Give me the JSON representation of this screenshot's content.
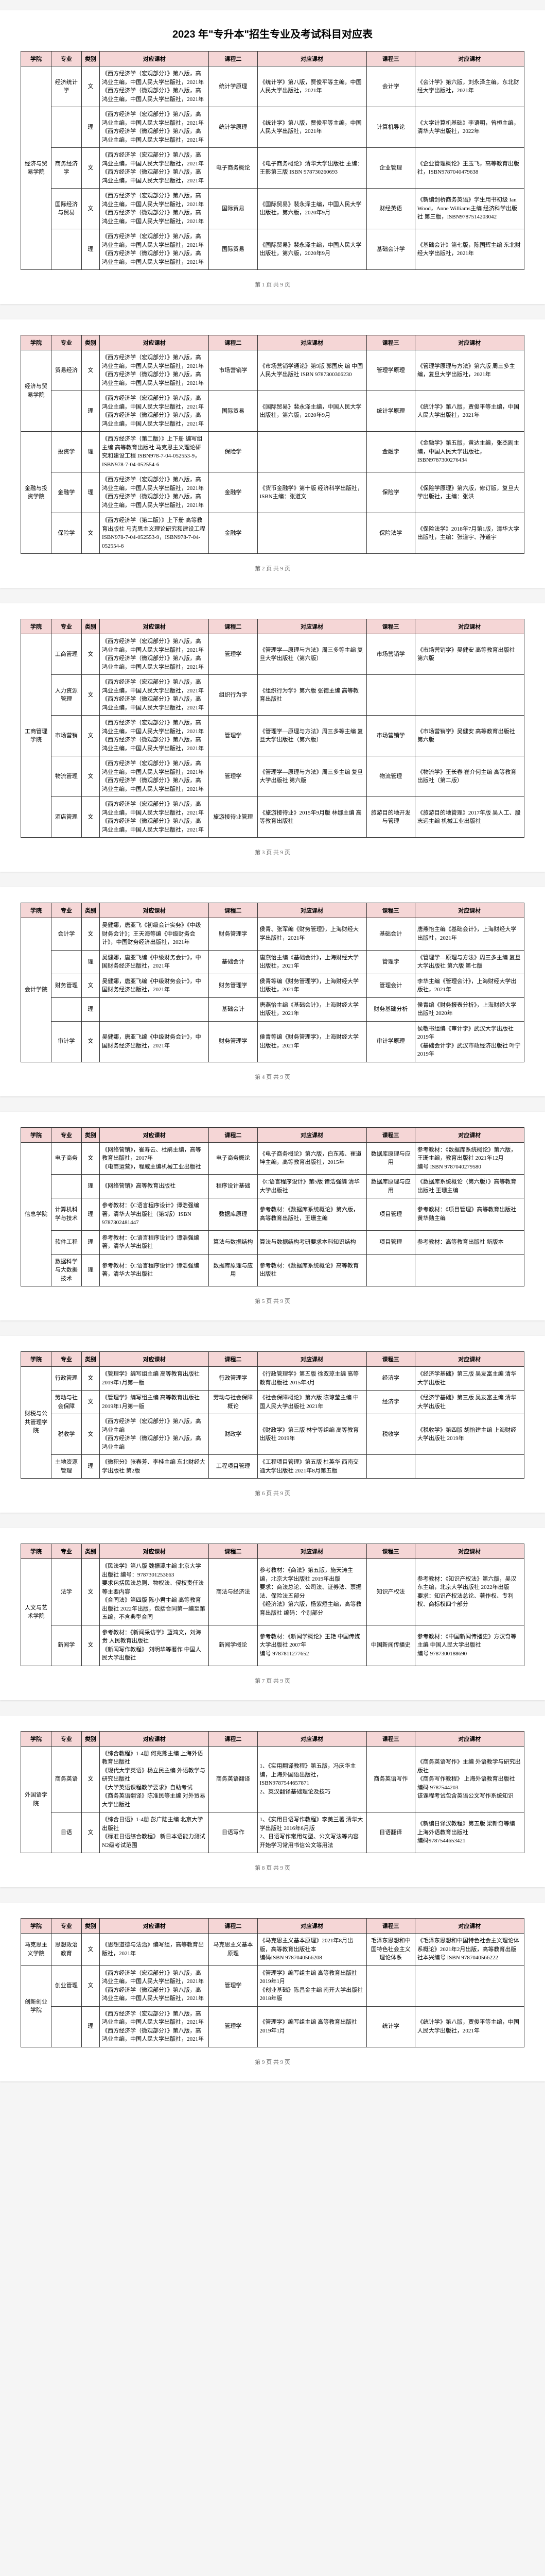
{
  "title": "2023 年\"专升本\"招生专业及考试科目对应表",
  "columns": [
    "学院",
    "专业",
    "类别",
    "对应课材",
    "课程二",
    "对应课材",
    "课程三",
    "对应课材"
  ],
  "page_prefix": "第",
  "page_suffix": "页 共 9 页",
  "colors": {
    "header_bg": "#f5d6d6",
    "border": "#333333",
    "page_bg": "#f5f5f5",
    "paper_bg": "#ffffff"
  },
  "pages": [
    {
      "num": 1,
      "rows": [
        {
          "school": "经济与贸易学院",
          "school_rs": 5,
          "major": "经济统计学",
          "class": "文",
          "tb1": "《西方经济学（宏观部分）》第八版，高鸿业主编，中国人民大学出版社，2021年\n《西方经济学（微观部分）》第八版，高鸿业主编，中国人民大学出版社，2021年",
          "c2": "统计学原理",
          "tb2": "《统计学》第八版，贾俊平等主编，中国人民大学出版社，2021年",
          "c3": "会计学",
          "tb3": "《会计学》第六版，刘永泽主编，东北财经大学出版社，2021年"
        },
        {
          "major": "",
          "class": "理",
          "tb1": "《西方经济学（宏观部分）》第八版，高鸿业主编，中国人民大学出版社，2021年\n《西方经济学（微观部分）》第八版，高鸿业主编，中国人民大学出版社，2021年",
          "c2": "统计学原理",
          "tb2": "《统计学》第八版，贾俊平等主编，中国人民大学出版社，2021年",
          "c3": "计算机导论",
          "tb3": "《大学计算机基础》李语明，曾桓主编，清华大学出版社，2022年"
        },
        {
          "major": "商务经济学",
          "class": "文",
          "tb1": "《西方经济学（宏观部分）》第八版，高鸿业主编，中国人民大学出版社，2021年\n《西方经济学（微观部分）》第八版，高鸿业主编，中国人民大学出版社，2021年",
          "c2": "电子商务概论",
          "tb2": "《电子商务概论》清华大学出版社 主编：王影第三版 ISBN 978730260693",
          "c3": "企业管理",
          "tb3": "《企业管理概论》王玉飞，高等教育出版社，ISBN9787040479638"
        },
        {
          "major": "国际经济与贸易",
          "class": "文",
          "tb1": "《西方经济学（宏观部分）》第八版，高鸿业主编，中国人民大学出版社，2021年\n《西方经济学（微观部分）》第八版，高鸿业主编，中国人民大学出版社，2021年",
          "c2": "国际贸易",
          "tb2": "《国际贸易》裴永泽主编，中国人民大学出版社，第六版，2020年9月",
          "c3": "财经英语",
          "tb3": "《新编剑桥商务英语》学生用书初级 Ian Wood，Anne Williams主编 经济科学出版社 第三版，ISBN9787514203042"
        },
        {
          "major": "",
          "class": "理",
          "tb1": "《西方经济学（宏观部分）》第八版，高鸿业主编，中国人民大学出版社，2021年\n《西方经济学（微观部分）》第八版，高鸿业主编，中国人民大学出版社，2021年",
          "c2": "国际贸易",
          "tb2": "《国际贸易》裴永泽主编，中国人民大学出版社，第六版，2020年9月",
          "c3": "基础会计学",
          "tb3": "《基础会计》第七版，陈国辉主编 东北财经大学出版社，2021年"
        }
      ]
    },
    {
      "num": 2,
      "rows": [
        {
          "school": "经济与贸易学院",
          "school_rs": 2,
          "major": "贸易经济",
          "class": "文",
          "tb1": "《西方经济学（宏观部分）》第八版，高鸿业主编，中国人民大学出版社，2021年\n《西方经济学（微观部分）》第八版，高鸿业主编，中国人民大学出版社，2021年",
          "c2": "市场营销学",
          "tb2": "《市场营销学通论》第9版 郭国庆 编 中国人民大学出版社 ISBN 9787300306230",
          "c3": "管理学原理",
          "tb3": "《管理学原理与方法》第六版 周三多主编，复旦大学出版社，2021年"
        },
        {
          "major": "",
          "class": "理",
          "tb1": "《西方经济学（宏观部分）》第八版，高鸿业主编，中国人民大学出版社，2021年\n《西方经济学（微观部分）》第八版，高鸿业主编，中国人民大学出版社，2021年",
          "c2": "国际贸易",
          "tb2": "《国际贸易》裴永泽主编，中国人民大学出版社，第六版，2020年9月",
          "c3": "统计学原理",
          "tb3": "《统计学》第八版，贾俊平等主编，中国人民大学出版社，2021年"
        },
        {
          "school": "金融与投资学院",
          "school_rs": 3,
          "major": "投资学",
          "class": "理",
          "tb1": "《西方经济学（第二版）》上下册 编写组主编 高等教育出版社 马克思主义理论研究和建设工程 ISBN978-7-04-052553-9，ISBN978-7-04-052554-6",
          "c2": "保险学",
          "tb2": "",
          "c3": "金融学",
          "tb3": "《金融学》第五版，黄达主编，张杰副主编，中国人民大学出版社，ISBN9787300276434"
        },
        {
          "major": "金融学",
          "class": "理",
          "tb1": "《西方经济学（宏观部分）》第八版，高鸿业主编，中国人民大学出版社，2021年\n《西方经济学（微观部分）》第八版，高鸿业主编，中国人民大学出版社，2021年",
          "c2": "金融学",
          "tb2": "《货币金融学》第十版 经济科学出版社，ISBN主编：张道文",
          "c3": "保险学",
          "tb3": "《保险学原理》第六版，修订版，复旦大学出版社，主编：张洪"
        },
        {
          "major": "保险学",
          "class": "文",
          "tb1": "《西方经济学（第二版）》上下册 高等教育出版社 马克思主义理论研究和建设工程 ISBN978-7-04-052553-9，ISBN978-7-04-052554-6",
          "c2": "金融学",
          "tb2": "",
          "c3": "保险法学",
          "tb3": "《保险法学》2018年7月第1版，清华大学出版社，主编：张道宇、孙道宇"
        }
      ]
    },
    {
      "num": 3,
      "rows": [
        {
          "school": "工商管理学院",
          "school_rs": 5,
          "major": "工商管理",
          "class": "文",
          "tb1": "《西方经济学（宏观部分）》第八版，高鸿业主编，中国人民大学出版社，2021年\n《西方经济学（微观部分）》第八版，高鸿业主编，中国人民大学出版社，2021年",
          "c2": "管理学",
          "tb2": "《管理学—原理与方法》周三多等主编 复旦大学出版社（第六版）",
          "c3": "市场营销学",
          "tb3": "《市场营销学》吴健安 高等教育出版社 第六版"
        },
        {
          "major": "人力资源管理",
          "class": "文",
          "tb1": "《西方经济学（宏观部分）》第八版，高鸿业主编，中国人民大学出版社，2021年\n《西方经济学（微观部分）》第八版，高鸿业主编，中国人民大学出版社，2021年",
          "c2": "组织行为学",
          "tb2": "《组织行为学》第六版 张德主编 高等教育出版社",
          "c3": "",
          "tb3": ""
        },
        {
          "major": "市场营销",
          "class": "文",
          "tb1": "《西方经济学（宏观部分）》第八版，高鸿业主编，中国人民大学出版社，2021年\n《西方经济学（微观部分）》第八版，高鸿业主编，中国人民大学出版社，2021年",
          "c2": "管理学",
          "tb2": "《管理学—原理与方法》周三多等主编 复旦大学出版社（第六版）",
          "c3": "市场营销学",
          "tb3": "《市场营销学》吴健安 高等教育出版社 第六版"
        },
        {
          "major": "物流管理",
          "class": "文",
          "tb1": "《西方经济学（宏观部分）》第八版，高鸿业主编，中国人民大学出版社，2021年\n《西方经济学（微观部分）》第八版，高鸿业主编，中国人民大学出版社，2021年",
          "c2": "管理学",
          "tb2": "《管理学—原理与方法》周三多主编 复旦大学出版社 第六版",
          "c3": "物流管理",
          "tb3": "《物流学》王长春 崔介何主编 高等教育出版社（第二版）"
        },
        {
          "major": "酒店管理",
          "class": "文",
          "tb1": "《西方经济学（宏观部分）》第八版，高鸿业主编，中国人民大学出版社，2021年\n《西方经济学（微观部分）》第八版，高鸿业主编，中国人民大学出版社，2021年",
          "c2": "旅游接待业管理",
          "tb2": "《旅游接待业》2015年9月版 林娜主编 高等教育出版社",
          "c3": "旅游目的地开发与管理",
          "tb3": "《旅游目的地管理》2017年版 吴人工、殷志远主编 机械工业出版社"
        }
      ]
    },
    {
      "num": 4,
      "rows": [
        {
          "school": "会计学院",
          "school_rs": 5,
          "major": "会计学",
          "class": "文",
          "tb1": "吴健娜，唐亚飞《初级会计实务》《中级财务会计》；王天海等编《中级财务会计》，中国财务经济出版社，2021年",
          "c2": "财务管理学",
          "tb2": "侯青、张军编《财务管理》，上海财经大学出版社，2021年",
          "c3": "基础会计",
          "tb3": "唐燕怡主编《基础会计》，上海财经大学出版社，2021年"
        },
        {
          "major": "",
          "class": "理",
          "tb1": "吴健娜，唐亚飞编《中级财务会计》，中国财务经济出版社，2021年",
          "c2": "基础会计",
          "tb2": "唐燕怡主编《基础会计》，上海财经大学出版社，2021年",
          "c3": "管理学",
          "tb3": "《管理学—原理与方法》周三多主编 复旦大学出版社 第六版 第七版"
        },
        {
          "major": "财务管理",
          "class": "文",
          "tb1": "吴健娜，唐亚飞编《中级财务会计》，中国财务经济出版社，2021年",
          "c2": "财务管理学",
          "tb2": "侯青等编《财务管理学》，上海财经大学出版社，2021年",
          "c3": "管理会计",
          "tb3": "李华主编《管理会计》，上海财经大学出版社，2021年"
        },
        {
          "major": "",
          "class": "理",
          "tb1": "",
          "c2": "基础会计",
          "tb2": "唐燕怡主编《基础会计》，上海财经大学出版社，2021年",
          "c3": "财务基础分析",
          "tb3": "侯青编《财务报表分析》，上海财经大学出版社 2020年"
        },
        {
          "major": "审计学",
          "class": "文",
          "tb1": "吴健娜，唐亚飞编《中级财务会计》，中国财务经济出版社，2021年",
          "c2": "财务管理学",
          "tb2": "侯青等编《财务管理学》，上海财经大学出版社，2021年",
          "c3": "审计学原理",
          "tb3": "侯敬书组编《审计学》武汉大学出版社2019年\n《基础会计学》武汉市政经济出版社 叶宁 2019年"
        }
      ]
    },
    {
      "num": 5,
      "rows": [
        {
          "school": "信息学院",
          "school_rs": 5,
          "major": "电子商务",
          "class": "文",
          "tb1": "《网络营销》，崔寿云、杜鹃主编，高等教育出版社，2017年\n《电商运营》，程威主编机械工业出版社",
          "c2": "电子商务概论",
          "tb2": "《电子商务概论》第六版，白东燕、崔道坤主编，高等教育出版社，2015年",
          "c3": "数据库原理与应用",
          "tb3": "参考教材：《数据库系统概论》第六版，王珊主编，教育出版社 2021年12月\n编号 ISBN 9787040279580"
        },
        {
          "major": "",
          "class": "理",
          "tb1": "《网络营销》高等教育出版社",
          "c2": "程序设计基础",
          "tb2": "《C语言程序设计》第5版 谭浩强编 清华大学出版社",
          "c3": "数据库原理与应用",
          "tb3": "《数据库系统概论（第六版）》高等教育出版社 王珊主编"
        },
        {
          "major": "计算机科学与技术",
          "class": "理",
          "tb1": "参考教材：《C语言程序设计》谭浩强编著，清华大学出版社（第5版）ISBN 9787302481447",
          "c2": "数据库原理",
          "tb2": "参考教材：《数据库系统概论》第六版，高等教育出版社，王珊主编",
          "c3": "项目管理",
          "tb3": "参考教材：《项目管理》高等教育出版社 黄华勋主编"
        },
        {
          "major": "软件工程",
          "class": "理",
          "tb1": "参考教材：《C语言程序设计》谭浩强编著，清华大学出版社",
          "c2": "算法与数据结构",
          "tb2": "算法与数据结构考研要求本科知识结构",
          "c3": "项目管理",
          "tb3": "参考教材：高等教育出版社 新版本"
        },
        {
          "major": "数据科学与大数据技术",
          "class": "理",
          "tb1": "参考教材：《C语言程序设计》谭浩强编著，清华大学出版社",
          "c2": "数据库原理与应用",
          "tb2": "参考教材：《数据库系统概论》高等教育出版社",
          "c3": "",
          "tb3": ""
        }
      ]
    },
    {
      "num": 6,
      "rows": [
        {
          "school": "财税与公共管理学院",
          "school_rs": 4,
          "major": "行政管理",
          "class": "文",
          "tb1": "《管理学》编写组主编 高等教育出版社 2019年1月第一版",
          "c2": "行政管理学",
          "tb2": "《行政管理学》第五版 徐双琼主编 高等教育出版社 2015年3月",
          "c3": "经济学",
          "tb3": "《经济学基础》第三版 吴友富主编 清华大学出版社"
        },
        {
          "major": "劳动与社会保障",
          "class": "文",
          "tb1": "《管理学》编写组主编 高等教育出版社 2019年1月第一版",
          "c2": "劳动与社会保障概论",
          "tb2": "《社会保障概论》第六版 陈琼莹主编 中国人民大学出版社 2021年",
          "c3": "经济学",
          "tb3": "《经济学基础》第三版 吴友富主编 清华大学出版社"
        },
        {
          "major": "税收学",
          "class": "文",
          "tb1": "《西方经济学（宏观部分）》第八版，高鸿业主编\n《西方经济学（微观部分）》第八版，高鸿业主编",
          "c2": "财政学",
          "tb2": "《财政学》第三版 林宁等组编 高等教育出版社 2019年",
          "c3": "税收学",
          "tb3": "《税收学》第四版 胡怡建主编 上海财经大学出版社 2019年"
        },
        {
          "major": "土地资源管理",
          "class": "理",
          "tb1": "《微积分》张春芳、李桂主编 东北财经大学出版社 第2版",
          "c2": "工程项目管理",
          "tb2": "《工程项目管理》第五版 杜英华 西南交通大学出版社 2021年8月第五版",
          "c3": "",
          "tb3": ""
        }
      ]
    },
    {
      "num": 7,
      "rows": [
        {
          "school": "人文与艺术学院",
          "school_rs": 2,
          "major": "法学",
          "class": "文",
          "tb1": "《民法学》第八版 魏振瀛主编 北京大学出版社 编号：9787301253663\n要求包括民法总则、物权法、侵权责任法等主要内容\n《合同法》第四版 陈小君主编 高等教育出版社 2022年出版，包括合同第一编至第五编，不含典型合同",
          "c2": "商法与经济法",
          "tb2": "参考教材：《商法》第五版，施天涛主编，北京大学出版社 2019年出版\n要求：商法总论、公司法、证券法、票据法、保险法五部分\n《经济法》第六版，杨紫烜主编，高等教育出版社 编码：个别部分",
          "c3": "知识产权法",
          "tb3": "参考教材：《知识产权法》第六版，吴汉东主编，北京大学出版社 2022年出版\n要求：知识产权法总论、著作权、专利权、商标权四个部分"
        },
        {
          "major": "新闻学",
          "class": "文",
          "tb1": "参考教材：《新闻采访学》蓝鸿文，刘海贵 人民教育出版社\n《新闻写作教程》 刘明华等著作 中国人民大学出版社",
          "c2": "新闻学概论",
          "tb2": "参考教材：《新闻学概论》王艳 中国传媒大学出版社 2007年\n编号 9787811277652",
          "c3": "中国新闻传播史",
          "tb3": "参考教材：《中国新闻传播史》方汉奇等主编 中国人民大学出版社\n编号 9787300188690"
        }
      ]
    },
    {
      "num": 8,
      "rows": [
        {
          "school": "外国语学院",
          "school_rs": 2,
          "major": "商务英语",
          "class": "文",
          "tb1": "《综合教程》1-4册 何兆熊主编 上海外语教育出版社\n《现代大学英语》杨立民主编 外语教学与研究出版社\n《大学英语课程教学要求》自助考试\n《商务英语翻译》陈准民等主编 对外贸易大学出版社",
          "c2": "商务英语翻译",
          "tb2": "1、《实用翻译教程》第五版，冯庆华主编，上海外国语出版社，ISBN9787544657871\n2、英汉翻译基础理论及技巧",
          "c3": "商务英语写作",
          "tb3": "《商务英语写作》主编 外语教学与研究出版社\n《商务写作教程》 上海外语教育出版社\n编码 9787544203\n该课程考试包含英语公文写作系统知识"
        },
        {
          "major": "日语",
          "class": "文",
          "tb1": "《综合日语》1-4册 彭广陆主编 北京大学出版社\n《标准日语综合教程》 新日本语能力测试N2级考试范围",
          "c2": "日语写作",
          "tb2": "1、《实用日语写作教程》李美兰著 清华大学出版社 2016年6月版\n2、日语写作常用句型、公文写法等内容\n开始学习常用书信公文等用法",
          "c3": "日语翻译",
          "tb3": "《新编日译汉教程》第五版 梁新奇等编 上海外语教育出版社\n编码9787544653421"
        }
      ]
    },
    {
      "num": 9,
      "rows": [
        {
          "school": "马克思主义学院",
          "school_rs": 1,
          "major": "思想政治教育",
          "class": "文",
          "tb1": "《思想道德与法治》编写组，高等教育出版社，2021年",
          "c2": "马克思主义基本原理",
          "tb2": "《马克思主义基本原理》2021年8月出版，高等教育出版社本\n编码ISBN 9787040566208",
          "c3": "毛泽东思想和中国特色社会主义理论体系",
          "tb3": "《毛泽东思想和中国特色社会主义理论体系概论》2021年2月出版，高等教育出版社本兴编号 ISBN 9787040566222"
        },
        {
          "school": "创新创业学院",
          "school_rs": 2,
          "major": "创业管理",
          "class": "文",
          "tb1": "《西方经济学（宏观部分）》第八版，高鸿业主编，中国人民大学出版社，2021年\n《西方经济学（微观部分）》第八版，高鸿业主编，中国人民大学出版社，2021年",
          "c2": "管理学",
          "tb2": "《管理学》编写组主编 高等教育出版社 2019年1月\n《创业基础》陈昌金主编 南开大学出版社 2018年版",
          "c3": "",
          "tb3": ""
        },
        {
          "major": "",
          "class": "理",
          "tb1": "《西方经济学（宏观部分）》第八版，高鸿业主编，中国人民大学出版社，2021年\n《西方经济学（微观部分）》第八版，高鸿业主编，中国人民大学出版社，2021年",
          "c2": "管理学",
          "tb2": "《管理学》编写组主编 高等教育出版社 2019年1月",
          "c3": "统计学",
          "tb3": "《统计学》第八版，贾俊平等主编，中国人民大学出版社，2021年"
        }
      ]
    }
  ]
}
